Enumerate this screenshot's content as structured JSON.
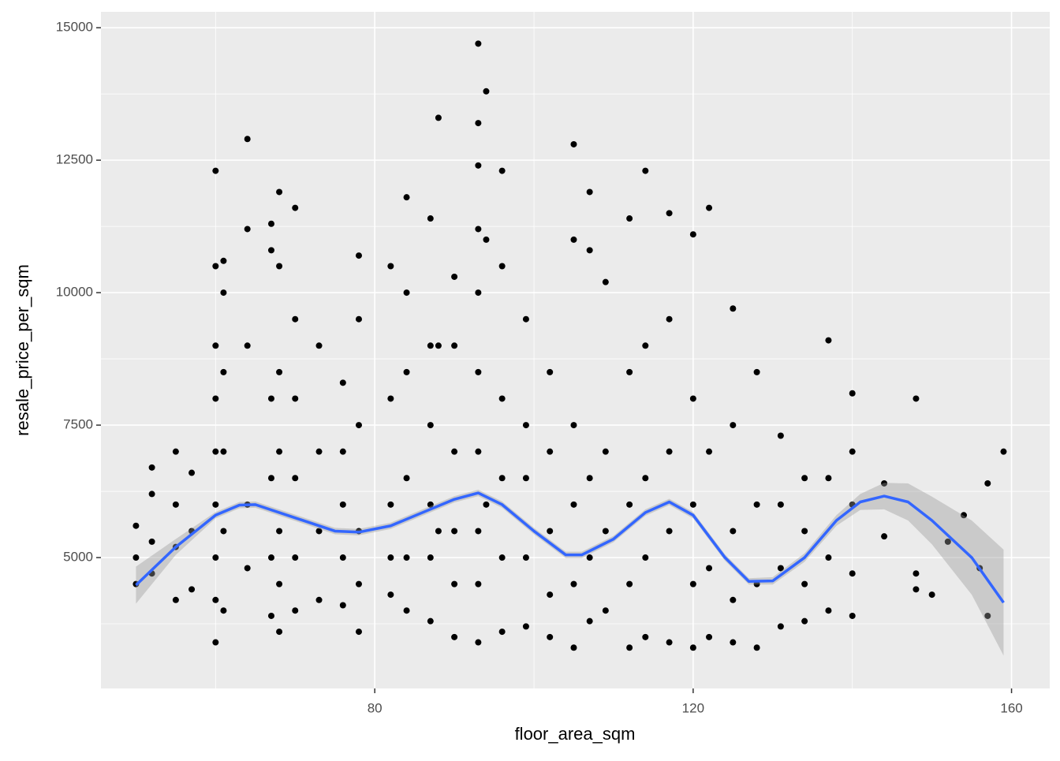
{
  "chart_data": {
    "type": "scatter",
    "xlabel": "floor_area_sqm",
    "ylabel": "resale_price_per_sqm",
    "xlim": [
      45.6,
      164.8
    ],
    "ylim": [
      2530,
      15300
    ],
    "xticks": [
      80,
      120,
      160
    ],
    "yticks": [
      5000,
      7500,
      10000,
      12500,
      15000
    ],
    "x_minor_grid": [
      60,
      100,
      140
    ],
    "y_minor_grid": [
      3750,
      6250,
      8750,
      11250,
      13750
    ],
    "grid": true,
    "points": {
      "color": "#000000",
      "x": [
        50,
        50,
        50,
        52,
        52,
        52,
        52,
        55,
        55,
        55,
        55,
        57,
        57,
        57,
        60,
        60,
        60,
        60,
        60,
        60,
        60,
        60,
        60,
        61,
        61,
        61,
        61,
        61,
        61,
        64,
        64,
        64,
        64,
        64,
        67,
        67,
        67,
        67,
        67,
        67,
        68,
        68,
        68,
        68,
        68,
        68,
        68,
        70,
        70,
        70,
        70,
        70,
        70,
        73,
        73,
        73,
        73,
        76,
        76,
        76,
        76,
        76,
        78,
        78,
        78,
        78,
        78,
        78,
        82,
        82,
        82,
        82,
        82,
        84,
        84,
        84,
        84,
        84,
        84,
        87,
        87,
        87,
        87,
        87,
        87,
        88,
        88,
        88,
        90,
        90,
        90,
        90,
        90,
        90,
        93,
        93,
        93,
        93,
        93,
        93,
        93,
        93,
        93,
        93,
        94,
        94,
        94,
        96,
        96,
        96,
        96,
        96,
        96,
        99,
        99,
        99,
        99,
        99,
        102,
        102,
        102,
        102,
        102,
        105,
        105,
        105,
        105,
        105,
        105,
        107,
        107,
        107,
        107,
        107,
        109,
        109,
        109,
        109,
        112,
        112,
        112,
        112,
        112,
        114,
        114,
        114,
        114,
        114,
        117,
        117,
        117,
        117,
        117,
        120,
        120,
        120,
        120,
        120,
        122,
        122,
        122,
        122,
        125,
        125,
        125,
        125,
        125,
        128,
        128,
        128,
        128,
        131,
        131,
        131,
        131,
        134,
        134,
        134,
        134,
        137,
        137,
        137,
        137,
        140,
        140,
        140,
        140,
        140,
        144,
        144,
        148,
        148,
        148,
        150,
        152,
        154,
        156,
        157,
        157,
        159
      ],
      "y": [
        4500,
        5000,
        5600,
        4700,
        5300,
        6200,
        6700,
        4200,
        5200,
        6000,
        7000,
        4400,
        5500,
        6600,
        3400,
        4200,
        5000,
        6000,
        7000,
        8000,
        9000,
        10500,
        12300,
        4000,
        5500,
        7000,
        8500,
        10000,
        10600,
        4800,
        6000,
        9000,
        11200,
        12900,
        3900,
        5000,
        6500,
        8000,
        10800,
        11300,
        3600,
        4500,
        5500,
        7000,
        8500,
        10500,
        11900,
        4000,
        5000,
        6500,
        8000,
        9500,
        11600,
        4200,
        5500,
        7000,
        9000,
        4100,
        5000,
        6000,
        7000,
        8300,
        3600,
        4500,
        5500,
        7500,
        9500,
        10700,
        4300,
        5000,
        6000,
        8000,
        10500,
        4000,
        5000,
        6500,
        8500,
        10000,
        11800,
        3800,
        5000,
        6000,
        7500,
        9000,
        11400,
        5500,
        9000,
        13300,
        3500,
        4500,
        5500,
        7000,
        9000,
        10300,
        3400,
        4500,
        5500,
        7000,
        8500,
        10000,
        11200,
        12400,
        13200,
        14700,
        6000,
        11000,
        13800,
        3600,
        5000,
        6500,
        8000,
        10500,
        12300,
        3700,
        5000,
        6500,
        7500,
        9500,
        3500,
        4300,
        5500,
        7000,
        8500,
        3300,
        4500,
        6000,
        7500,
        11000,
        12800,
        3800,
        5000,
        6500,
        10800,
        11900,
        4000,
        5500,
        7000,
        10200,
        3300,
        4500,
        6000,
        8500,
        11400,
        3500,
        5000,
        6500,
        9000,
        12300,
        3400,
        5500,
        7000,
        9500,
        11500,
        3300,
        4500,
        6000,
        8000,
        11100,
        3500,
        4800,
        7000,
        11600,
        3400,
        4200,
        5500,
        7500,
        9700,
        3300,
        4500,
        6000,
        8500,
        3700,
        4800,
        6000,
        7300,
        3800,
        4500,
        5500,
        6500,
        4000,
        5000,
        6500,
        9100,
        3900,
        4700,
        6000,
        7000,
        8100,
        5400,
        6400,
        4400,
        4700,
        8000,
        4300,
        5300,
        5800,
        4800,
        3900,
        6400,
        7000
      ]
    },
    "smooth": {
      "color": "#3366ff",
      "band_color": "#999999",
      "x": [
        50,
        55,
        60,
        63,
        65,
        70,
        75,
        78,
        82,
        86,
        90,
        93,
        96,
        100,
        104,
        106,
        110,
        114,
        117,
        120,
        124,
        127,
        130,
        134,
        138,
        141,
        144,
        147,
        150,
        155,
        159
      ],
      "y": [
        4480,
        5200,
        5800,
        5990,
        6000,
        5750,
        5500,
        5480,
        5600,
        5850,
        6100,
        6220,
        6000,
        5500,
        5050,
        5050,
        5350,
        5850,
        6050,
        5800,
        5000,
        4550,
        4560,
        5000,
        5700,
        6050,
        6160,
        6050,
        5700,
        5000,
        4150
      ],
      "lower": [
        4130,
        5050,
        5740,
        5930,
        5940,
        5690,
        5440,
        5420,
        5540,
        5790,
        6040,
        6160,
        5940,
        5440,
        4990,
        4990,
        5290,
        5790,
        5990,
        5740,
        4940,
        4490,
        4490,
        4920,
        5600,
        5900,
        5910,
        5700,
        5250,
        4300,
        3150
      ],
      "upper": [
        4830,
        5350,
        5860,
        6050,
        6060,
        5810,
        5560,
        5540,
        5660,
        5910,
        6160,
        6280,
        6060,
        5560,
        5110,
        5110,
        5410,
        5910,
        6110,
        5860,
        5060,
        4610,
        4630,
        5080,
        5800,
        6200,
        6410,
        6400,
        6150,
        5700,
        5150
      ]
    }
  }
}
